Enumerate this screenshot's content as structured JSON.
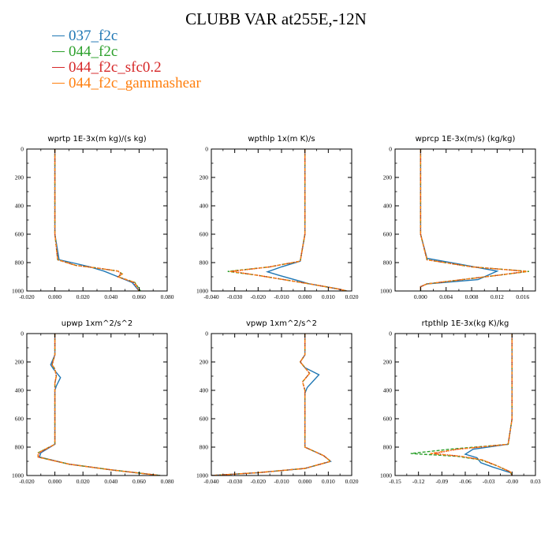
{
  "title": "CLUBB VAR at255E,-12N",
  "legend": [
    {
      "label": "037_f2c",
      "color": "#1f77b4"
    },
    {
      "label": "044_f2c",
      "color": "#2ca02c"
    },
    {
      "label": "044_f2c_sfc0.2",
      "color": "#d62728"
    },
    {
      "label": "044_f2c_gammashear",
      "color": "#ff7f0e"
    }
  ],
  "chart_data": [
    {
      "type": "line",
      "title": "wprtp  1E-3x(m kg)/(s kg)",
      "xlim": [
        -0.02,
        0.08
      ],
      "xticks": [
        "-0.020",
        "0.000",
        "0.020",
        "0.040",
        "0.060",
        "0.080"
      ],
      "xtick_values": [
        -0.02,
        0.0,
        0.02,
        0.04,
        0.06,
        0.08
      ],
      "ylim": [
        1000,
        0
      ],
      "yticks": [
        "0",
        "200",
        "400",
        "600",
        "800",
        "1000"
      ],
      "ytick_values": [
        0,
        200,
        400,
        600,
        800,
        1000
      ],
      "series": [
        {
          "name": "037_f2c",
          "x": [
            0,
            0,
            0,
            0,
            0.003,
            0.012,
            0.025,
            0.035,
            0.045,
            0.055,
            0.06
          ],
          "y": [
            0,
            200,
            400,
            600,
            780,
            800,
            830,
            860,
            900,
            940,
            1000
          ]
        },
        {
          "name": "044_f2c",
          "x": [
            0,
            0,
            0,
            0,
            0.002,
            0.015,
            0.03,
            0.045,
            0.048,
            0.045,
            0.057,
            0.061
          ],
          "y": [
            0,
            200,
            400,
            600,
            780,
            820,
            838,
            860,
            880,
            900,
            940,
            1000
          ]
        },
        {
          "name": "044_f2c_sfc0.2",
          "x": [
            0,
            0,
            0,
            0,
            0.002,
            0.015,
            0.03,
            0.045,
            0.047,
            0.045,
            0.056,
            0.06
          ],
          "y": [
            0,
            200,
            400,
            600,
            780,
            820,
            838,
            860,
            880,
            900,
            940,
            1000
          ]
        },
        {
          "name": "044_f2c_gammashear",
          "x": [
            0,
            0,
            0,
            0,
            0.002,
            0.015,
            0.03,
            0.045,
            0.048,
            0.045,
            0.057,
            0.06
          ],
          "y": [
            0,
            200,
            400,
            600,
            780,
            820,
            838,
            860,
            880,
            900,
            940,
            1000
          ]
        }
      ]
    },
    {
      "type": "line",
      "title": "wpthlp  1x(m K)/s",
      "xlim": [
        -0.04,
        0.02
      ],
      "xticks": [
        "-0.040",
        "-0.030",
        "-0.020",
        "-0.010",
        "0.000",
        "0.010",
        "0.020"
      ],
      "xtick_values": [
        -0.04,
        -0.03,
        -0.02,
        -0.01,
        0.0,
        0.01,
        0.02
      ],
      "ylim": [
        1000,
        0
      ],
      "yticks": [
        "0",
        "200",
        "400",
        "600",
        "800",
        "1000"
      ],
      "ytick_values": [
        0,
        200,
        400,
        600,
        800,
        1000
      ],
      "series": [
        {
          "name": "037_f2c",
          "x": [
            0,
            0,
            0,
            0,
            0,
            -0.002,
            -0.01,
            -0.016,
            -0.011,
            0.002,
            0.014,
            0.018
          ],
          "y": [
            0,
            200,
            300,
            400,
            600,
            790,
            830,
            865,
            890,
            950,
            985,
            1000
          ]
        },
        {
          "name": "044_f2c",
          "x": [
            0,
            0,
            0,
            0,
            -0.002,
            -0.015,
            -0.033,
            -0.02,
            0.002,
            0.014,
            0.018
          ],
          "y": [
            0,
            200,
            400,
            600,
            790,
            830,
            862,
            890,
            950,
            985,
            1000
          ]
        },
        {
          "name": "044_f2c_sfc0.2",
          "x": [
            0,
            0,
            0,
            0,
            -0.002,
            -0.015,
            -0.031,
            -0.02,
            0.002,
            0.014,
            0.018
          ],
          "y": [
            0,
            200,
            400,
            600,
            790,
            830,
            862,
            890,
            950,
            985,
            1000
          ]
        },
        {
          "name": "044_f2c_gammashear",
          "x": [
            0,
            0,
            0,
            0,
            -0.002,
            -0.015,
            -0.032,
            -0.02,
            0.002,
            0.014,
            0.018
          ],
          "y": [
            0,
            200,
            400,
            600,
            790,
            830,
            862,
            890,
            950,
            985,
            1000
          ]
        }
      ]
    },
    {
      "type": "line",
      "title": "wprcp  1E-3x(m/s) (kg/kg)",
      "xlim": [
        -0.004,
        0.018
      ],
      "xticks": [
        "0.000",
        "0.004",
        "0.008",
        "0.012",
        "0.016"
      ],
      "xtick_values": [
        0.0,
        0.004,
        0.008,
        0.012,
        0.016
      ],
      "ylim": [
        1000,
        0
      ],
      "yticks": [
        "0",
        "200",
        "400",
        "600",
        "800",
        "1000"
      ],
      "ytick_values": [
        0,
        200,
        400,
        600,
        800,
        1000
      ],
      "series": [
        {
          "name": "037_f2c",
          "x": [
            0,
            0,
            0,
            0,
            0.001,
            0.006,
            0.012,
            0.009,
            0.001,
            0,
            0
          ],
          "y": [
            0,
            200,
            400,
            600,
            770,
            810,
            860,
            920,
            950,
            970,
            1000
          ]
        },
        {
          "name": "044_f2c",
          "x": [
            0,
            0,
            0,
            0,
            0.001,
            0.008,
            0.017,
            0.012,
            0.001,
            0,
            0
          ],
          "y": [
            0,
            200,
            400,
            600,
            780,
            830,
            862,
            890,
            950,
            970,
            1000
          ]
        },
        {
          "name": "044_f2c_sfc0.2",
          "x": [
            0,
            0,
            0,
            0,
            0.001,
            0.008,
            0.0165,
            0.012,
            0.001,
            0,
            0
          ],
          "y": [
            0,
            200,
            400,
            600,
            780,
            830,
            862,
            890,
            950,
            970,
            1000
          ]
        },
        {
          "name": "044_f2c_gammashear",
          "x": [
            0,
            0,
            0,
            0,
            0.001,
            0.008,
            0.0168,
            0.012,
            0.001,
            0,
            0
          ],
          "y": [
            0,
            200,
            400,
            600,
            780,
            830,
            862,
            890,
            950,
            970,
            1000
          ]
        }
      ]
    },
    {
      "type": "line",
      "title": "upwp  1xm^2/s^2",
      "xlim": [
        -0.02,
        0.08
      ],
      "xticks": [
        "-0.020",
        "0.000",
        "0.020",
        "0.040",
        "0.060",
        "0.080"
      ],
      "xtick_values": [
        -0.02,
        0.0,
        0.02,
        0.04,
        0.06,
        0.08
      ],
      "ylim": [
        1000,
        0
      ],
      "yticks": [
        "0",
        "200",
        "400",
        "600",
        "800",
        "1000"
      ],
      "ytick_values": [
        0,
        200,
        400,
        600,
        800,
        1000
      ],
      "series": [
        {
          "name": "037_f2c",
          "x": [
            0,
            0,
            -0.003,
            -0.001,
            0.004,
            0.001,
            0,
            0,
            0,
            -0.01,
            -0.011,
            0.01,
            0.04,
            0.075
          ],
          "y": [
            0,
            150,
            220,
            250,
            310,
            370,
            400,
            600,
            780,
            840,
            870,
            920,
            960,
            1000
          ]
        },
        {
          "name": "044_f2c",
          "x": [
            0,
            0,
            -0.002,
            0,
            0.001,
            0,
            0,
            0,
            -0.012,
            -0.012,
            0.01,
            0.04,
            0.075
          ],
          "y": [
            0,
            150,
            220,
            250,
            300,
            350,
            600,
            780,
            840,
            870,
            920,
            960,
            1000
          ]
        },
        {
          "name": "044_f2c_sfc0.2",
          "x": [
            0,
            0,
            -0.002,
            0,
            0.001,
            0,
            0,
            0,
            -0.011,
            -0.012,
            0.01,
            0.04,
            0.075
          ],
          "y": [
            0,
            150,
            220,
            250,
            300,
            350,
            600,
            780,
            840,
            870,
            920,
            960,
            1000
          ]
        },
        {
          "name": "044_f2c_gammashear",
          "x": [
            0,
            0,
            -0.002,
            0,
            0.001,
            0,
            0,
            0,
            -0.012,
            -0.012,
            0.01,
            0.04,
            0.075
          ],
          "y": [
            0,
            150,
            220,
            250,
            300,
            350,
            600,
            780,
            840,
            870,
            920,
            960,
            1000
          ]
        }
      ]
    },
    {
      "type": "line",
      "title": "vpwp  1xm^2/s^2",
      "xlim": [
        -0.04,
        0.02
      ],
      "xticks": [
        "-0.040",
        "-0.030",
        "-0.020",
        "-0.010",
        "0.000",
        "0.010",
        "0.020"
      ],
      "xtick_values": [
        -0.04,
        -0.03,
        -0.02,
        -0.01,
        0.0,
        0.01,
        0.02
      ],
      "ylim": [
        1000,
        0
      ],
      "yticks": [
        "0",
        "200",
        "400",
        "600",
        "800",
        "1000"
      ],
      "ytick_values": [
        0,
        200,
        400,
        600,
        800,
        1000
      ],
      "series": [
        {
          "name": "037_f2c",
          "x": [
            0,
            0,
            -0.002,
            0,
            0.006,
            0.001,
            0,
            0,
            0.008,
            0.011,
            0,
            -0.02,
            -0.04
          ],
          "y": [
            0,
            150,
            200,
            240,
            290,
            380,
            420,
            800,
            860,
            900,
            950,
            980,
            1000
          ]
        },
        {
          "name": "044_f2c",
          "x": [
            0,
            0,
            -0.002,
            0,
            0.002,
            -0.001,
            0,
            0,
            0.008,
            0.011,
            0,
            -0.02,
            -0.04
          ],
          "y": [
            0,
            150,
            200,
            240,
            280,
            340,
            400,
            800,
            860,
            900,
            950,
            980,
            1000
          ]
        },
        {
          "name": "044_f2c_sfc0.2",
          "x": [
            0,
            0,
            -0.002,
            0,
            0.002,
            -0.001,
            0,
            0,
            0.008,
            0.011,
            0,
            -0.02,
            -0.04
          ],
          "y": [
            0,
            150,
            200,
            240,
            280,
            340,
            400,
            800,
            860,
            900,
            950,
            980,
            1000
          ]
        },
        {
          "name": "044_f2c_gammashear",
          "x": [
            0,
            0,
            -0.002,
            0,
            0.002,
            -0.001,
            0,
            0,
            0.008,
            0.011,
            0,
            -0.02,
            -0.04
          ],
          "y": [
            0,
            150,
            200,
            240,
            280,
            340,
            400,
            800,
            860,
            900,
            950,
            980,
            1000
          ]
        }
      ]
    },
    {
      "type": "line",
      "title": "rtpthlp  1E-3x(kg K)/kg",
      "xlim": [
        -0.15,
        0.03
      ],
      "xticks": [
        "-0.15",
        "-0.12",
        "-0.09",
        "-0.06",
        "-0.03",
        "-0.00",
        "0.03"
      ],
      "xtick_values": [
        -0.15,
        -0.12,
        -0.09,
        -0.06,
        -0.03,
        0.0,
        0.03
      ],
      "ylim": [
        1000,
        0
      ],
      "yticks": [
        "0",
        "200",
        "400",
        "600",
        "800",
        "1000"
      ],
      "ytick_values": [
        0,
        200,
        400,
        600,
        800,
        1000
      ],
      "series": [
        {
          "name": "037_f2c",
          "x": [
            0,
            0,
            0,
            -0.005,
            -0.05,
            -0.06,
            -0.045,
            -0.04,
            -0.025,
            -0.002,
            0
          ],
          "y": [
            0,
            400,
            600,
            780,
            815,
            850,
            875,
            910,
            940,
            980,
            1000
          ]
        },
        {
          "name": "044_f2c",
          "x": [
            0,
            0,
            0,
            -0.005,
            -0.08,
            -0.13,
            -0.07,
            -0.04,
            -0.02,
            -0.002,
            0
          ],
          "y": [
            0,
            400,
            600,
            780,
            815,
            845,
            865,
            890,
            930,
            975,
            1000
          ]
        },
        {
          "name": "044_f2c_sfc0.2",
          "x": [
            0,
            0,
            0,
            -0.005,
            -0.07,
            -0.1,
            -0.065,
            -0.038,
            -0.02,
            -0.002,
            0
          ],
          "y": [
            0,
            400,
            600,
            780,
            815,
            845,
            865,
            890,
            930,
            975,
            1000
          ]
        },
        {
          "name": "044_f2c_gammashear",
          "x": [
            0,
            0,
            0,
            -0.005,
            -0.07,
            -0.105,
            -0.065,
            -0.038,
            -0.02,
            -0.002,
            0
          ],
          "y": [
            0,
            400,
            600,
            780,
            815,
            845,
            865,
            890,
            930,
            975,
            1000
          ]
        }
      ]
    }
  ]
}
